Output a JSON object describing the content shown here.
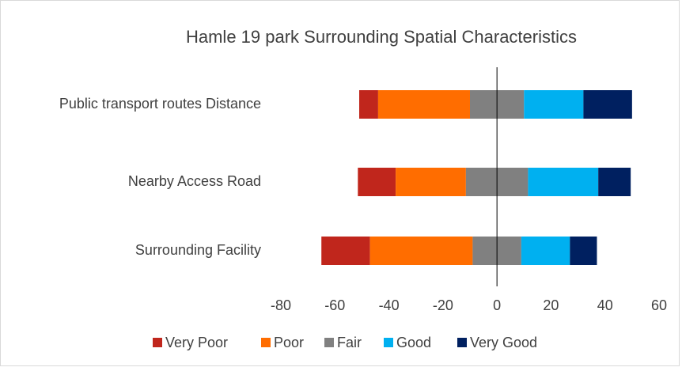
{
  "chart_data": {
    "type": "diverging_bar",
    "title": "Hamle 19 park Surrounding  Spatial Characteristics",
    "categories": [
      "Public transport routes Distance",
      "Nearby Access Road",
      "Surrounding Facility"
    ],
    "series": [
      {
        "name": "Very Poor",
        "color": "#c0261c",
        "values": [
          7,
          14,
          18
        ]
      },
      {
        "name": "Poor",
        "color": "#ff6d00",
        "values": [
          34,
          26,
          38
        ]
      },
      {
        "name": "Fair",
        "color": "#808080",
        "values": [
          20,
          23,
          18
        ]
      },
      {
        "name": "Good",
        "color": "#00b0f0",
        "values": [
          22,
          26,
          18
        ]
      },
      {
        "name": "Very Good",
        "color": "#002060",
        "values": [
          18,
          12,
          10
        ]
      }
    ],
    "xlim": [
      -80,
      60
    ],
    "xticks": [
      -80,
      -60,
      -40,
      -20,
      0,
      20,
      40,
      60
    ]
  }
}
